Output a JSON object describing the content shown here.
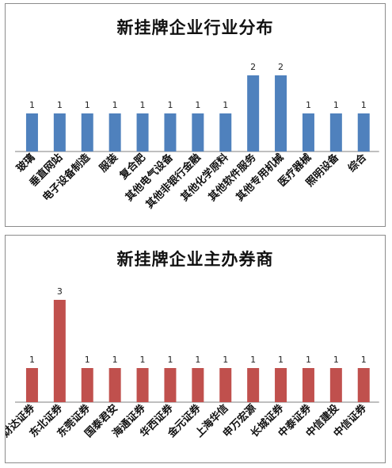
{
  "chart_data": [
    {
      "type": "bar",
      "title": "新挂牌企业行业分布",
      "categories": [
        "玻璃",
        "垂直网站",
        "电子设备制造",
        "服装",
        "复合肥",
        "其他电气设备",
        "其他非银行金融",
        "其他化学原料",
        "其他软件服务",
        "其他专用机械",
        "医疗器械",
        "照明设备",
        "综合"
      ],
      "values": [
        1,
        1,
        1,
        1,
        1,
        1,
        1,
        1,
        2,
        2,
        1,
        1,
        1
      ],
      "data_labels": true,
      "ylim": [
        0,
        2
      ],
      "grid": false,
      "color": "#4f81bd"
    },
    {
      "type": "bar",
      "title": "新挂牌企业主办券商",
      "categories": [
        "财达证券",
        "东北证券",
        "东莞证券",
        "国泰君安",
        "海通证券",
        "华西证券",
        "金元证券",
        "上海华信",
        "申万宏源",
        "长城证券",
        "中泰证券",
        "中信建投",
        "中信证券"
      ],
      "values": [
        1,
        3,
        1,
        1,
        1,
        1,
        1,
        1,
        1,
        1,
        1,
        1,
        1
      ],
      "data_labels": true,
      "ylim": [
        0,
        3
      ],
      "grid": false,
      "color": "#c0504d"
    }
  ]
}
